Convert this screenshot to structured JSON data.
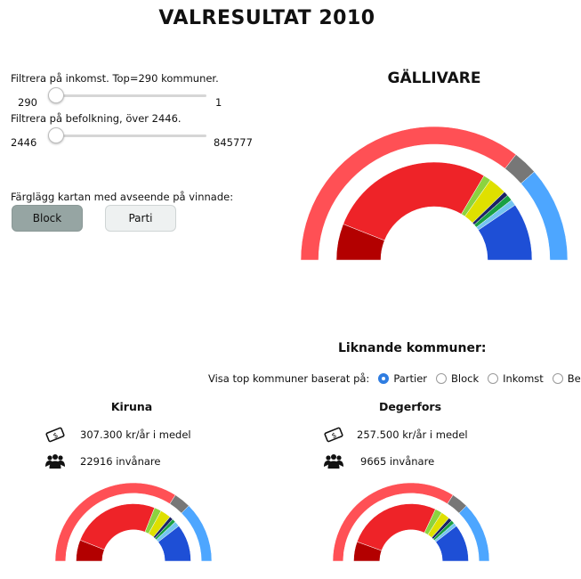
{
  "page_title": "VALRESULTAT 2010",
  "filters": {
    "income_label": "Filtrera på inkomst. Top=290 kommuner.",
    "income_min": "290",
    "income_max": "1",
    "population_label": "Filtrera på befolkning, över 2446.",
    "population_min": "2446",
    "population_max": "845777",
    "color_label": "Färglägg kartan med avseende på vinnade:",
    "btn_block": "Block",
    "btn_parti": "Parti"
  },
  "colors": {
    "red_outer": "#ff5055",
    "red_inner": "#ee2328",
    "dark_red": "#b30000",
    "gray": "#777777",
    "light_blue": "#4da6ff",
    "blue": "#1e4fd6",
    "green_light": "#8bd33f",
    "yellow": "#dfe000",
    "navy": "#1b2266",
    "green": "#19a043",
    "sky": "#74c4f0"
  },
  "main": {
    "name": "GÄLLIVARE"
  },
  "similar": {
    "heading": "Liknande kommuner:",
    "visa_label": "Visa top kommuner baserat på:",
    "options": [
      "Partier",
      "Block",
      "Inkomst",
      "Befolk"
    ],
    "selected": "Partier",
    "left": {
      "name": "Kiruna",
      "income": "307.300 kr/år i medel",
      "population": "22916 invånare"
    },
    "right": {
      "name": "Degerfors",
      "income": "257.500 kr/år i medel",
      "population": "9665 invånare"
    }
  },
  "icons": {
    "money": "money-icon",
    "people": "people-icon"
  },
  "chart_data": [
    {
      "type": "pie",
      "shape": "semi-donut",
      "municipality": "GÄLLIVARE",
      "outer_ring": [
        {
          "color": "#ff5055",
          "value": 71
        },
        {
          "color": "#777777",
          "value": 6
        },
        {
          "color": "#4da6ff",
          "value": 23
        }
      ],
      "inner_ring": [
        {
          "color": "#b30000",
          "value": 12
        },
        {
          "color": "#ee2328",
          "value": 55
        },
        {
          "color": "#8bd33f",
          "value": 2.5
        },
        {
          "color": "#dfe000",
          "value": 6
        },
        {
          "color": "#1b2266",
          "value": 1.5
        },
        {
          "color": "#19a043",
          "value": 2
        },
        {
          "color": "#74c4f0",
          "value": 2
        },
        {
          "color": "#1e4fd6",
          "value": 19
        }
      ]
    },
    {
      "type": "pie",
      "shape": "semi-donut",
      "municipality": "Kiruna",
      "outer_ring": [
        {
          "color": "#ff5055",
          "value": 68
        },
        {
          "color": "#777777",
          "value": 7
        },
        {
          "color": "#4da6ff",
          "value": 25
        }
      ],
      "inner_ring": [
        {
          "color": "#b30000",
          "value": 12
        },
        {
          "color": "#ee2328",
          "value": 50
        },
        {
          "color": "#8bd33f",
          "value": 4
        },
        {
          "color": "#dfe000",
          "value": 6
        },
        {
          "color": "#1b2266",
          "value": 2
        },
        {
          "color": "#19a043",
          "value": 2
        },
        {
          "color": "#74c4f0",
          "value": 3
        },
        {
          "color": "#1e4fd6",
          "value": 21
        }
      ]
    },
    {
      "type": "pie",
      "shape": "semi-donut",
      "municipality": "Degerfors",
      "outer_ring": [
        {
          "color": "#ff5055",
          "value": 68
        },
        {
          "color": "#777777",
          "value": 7
        },
        {
          "color": "#4da6ff",
          "value": 25
        }
      ],
      "inner_ring": [
        {
          "color": "#b30000",
          "value": 11
        },
        {
          "color": "#ee2328",
          "value": 53
        },
        {
          "color": "#8bd33f",
          "value": 4
        },
        {
          "color": "#dfe000",
          "value": 5
        },
        {
          "color": "#1b2266",
          "value": 2
        },
        {
          "color": "#19a043",
          "value": 2
        },
        {
          "color": "#74c4f0",
          "value": 2
        },
        {
          "color": "#1e4fd6",
          "value": 21
        }
      ]
    }
  ]
}
